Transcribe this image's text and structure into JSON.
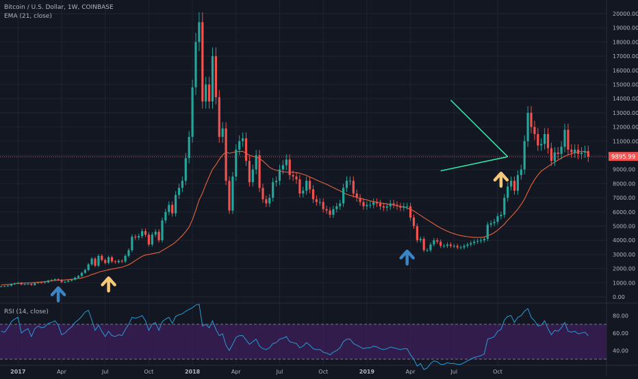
{
  "header": {
    "symbol_line": "Bitcoin / U.S. Dollar, 1W, COINBASE",
    "ema_label": "EMA (21, close)",
    "rsi_label": "RSI (14, close)"
  },
  "price_axis": {
    "ticks": [
      "20000.00",
      "19000.00",
      "18000.00",
      "17000.00",
      "16000.00",
      "15000.00",
      "14000.00",
      "13000.00",
      "12000.00",
      "11000.00",
      "10000.00",
      "9000.00",
      "8000.00",
      "7000.00",
      "6000.00",
      "5000.00",
      "4000.00",
      "3000.00",
      "2000.00",
      "1000.00",
      "0.00"
    ],
    "current_price": "9895.99"
  },
  "rsi_axis": {
    "ticks": [
      "80.00",
      "60.00",
      "40.00"
    ]
  },
  "time_axis": {
    "ticks": [
      "2017",
      "Apr",
      "Jul",
      "Oct",
      "2018",
      "Apr",
      "Jul",
      "Oct",
      "2019",
      "Apr",
      "Jul",
      "Oct"
    ]
  },
  "colors": {
    "background": "#131722",
    "up": "#26a69a",
    "down": "#ef5350",
    "ema": "#e8643a",
    "rsi": "#2a9bd6",
    "rsi_band": "#3c1f5b",
    "triangle": "#2ee6a6",
    "price_line": "#ef5350",
    "arrow_blue": "#3b85c5",
    "arrow_yellow": "#f5c978"
  },
  "chart_data": {
    "type": "candlestick",
    "title": "Bitcoin / U.S. Dollar, 1W, COINBASE",
    "y_range": [
      0,
      20000
    ],
    "current_price": 9895.99,
    "candles_start": "2016-11-28",
    "interval": "1W",
    "close": [
      750,
      760,
      790,
      900,
      960,
      1000,
      880,
      900,
      920,
      840,
      980,
      1010,
      1000,
      1030,
      1150,
      1190,
      1250,
      1200,
      1040,
      1070,
      1150,
      1220,
      1360,
      1480,
      1700,
      1900,
      2300,
      2700,
      2200,
      2900,
      2600,
      2400,
      2800,
      2500,
      2450,
      2550,
      2500,
      2900,
      3300,
      4250,
      4200,
      4300,
      4650,
      4400,
      3700,
      4400,
      4600,
      4000,
      5400,
      6000,
      6500,
      5900,
      7200,
      7700,
      8200,
      9800,
      11300,
      14800,
      18000,
      19400,
      13800,
      15000,
      13800,
      17000,
      14100,
      11300,
      11900,
      8200,
      6100,
      8500,
      10400,
      11000,
      11200,
      9600,
      8100,
      9000,
      10000,
      7700,
      6900,
      6600,
      7000,
      8100,
      8200,
      9000,
      9300,
      9700,
      8600,
      8500,
      8300,
      7300,
      7500,
      8200,
      7600,
      6900,
      6700,
      6700,
      6200,
      6100,
      5800,
      6200,
      6400,
      6600,
      7700,
      8200,
      8200,
      7300,
      7000,
      6700,
      6400,
      6500,
      6500,
      6700,
      6600,
      6400,
      6300,
      6400,
      6600,
      6500,
      6400,
      6300,
      6400,
      6400,
      5600,
      5000,
      4000,
      4100,
      3300,
      3300,
      3700,
      4000,
      3900,
      3600,
      3600,
      3700,
      3600,
      3600,
      3500,
      3500,
      3600,
      3700,
      3800,
      3900,
      3950,
      4000,
      4100,
      5100,
      5200,
      5300,
      5700,
      5800,
      7000,
      7800,
      8200,
      7500,
      8600,
      9000,
      11000,
      13000,
      12000,
      11500,
      10700,
      10800,
      11500,
      10500,
      9600,
      10200,
      10100,
      10600,
      11800,
      10400,
      10200,
      10400,
      10100,
      10200,
      10300,
      9900
    ],
    "ema_21": [
      850,
      860,
      880,
      900,
      920,
      950,
      960,
      980,
      990,
      1000,
      1020,
      1040,
      1060,
      1080,
      1100,
      1130,
      1160,
      1180,
      1190,
      1200,
      1220,
      1240,
      1270,
      1300,
      1340,
      1400,
      1480,
      1580,
      1650,
      1740,
      1810,
      1860,
      1920,
      1970,
      2010,
      2060,
      2100,
      2180,
      2270,
      2410,
      2570,
      2720,
      2870,
      2960,
      3000,
      3050,
      3100,
      3130,
      3270,
      3410,
      3560,
      3700,
      3880,
      4100,
      4340,
      4610,
      4940,
      5450,
      6120,
      6850,
      7330,
      7950,
      8500,
      9020,
      9330,
      9710,
      10020,
      10240,
      10140,
      10200,
      10250,
      10270,
      10280,
      10130,
      10010,
      9930,
      9890,
      9780,
      9600,
      9380,
      9150,
      9020,
      8940,
      8890,
      8840,
      8810,
      8800,
      8800,
      8780,
      8730,
      8650,
      8580,
      8470,
      8370,
      8250,
      8150,
      8050,
      7950,
      7830,
      7720,
      7600,
      7500,
      7360,
      7250,
      7170,
      7100,
      7030,
      6960,
      6900,
      6850,
      6780,
      6730,
      6690,
      6640,
      6600,
      6560,
      6520,
      6490,
      6450,
      6400,
      6340,
      6280,
      6190,
      6070,
      5910,
      5760,
      5600,
      5450,
      5300,
      5150,
      5000,
      4870,
      4750,
      4640,
      4540,
      4460,
      4390,
      4330,
      4290,
      4250,
      4220,
      4200,
      4200,
      4210,
      4230,
      4320,
      4410,
      4540,
      4710,
      4920,
      5140,
      5420,
      5660,
      5920,
      6200,
      6530,
      6910,
      7400,
      7880,
      8280,
      8610,
      8880,
      9050,
      9210,
      9380,
      9520,
      9660,
      9800,
      9940,
      10030,
      10110,
      10180,
      10240,
      10290,
      10250,
      10200
    ],
    "rsi_14": [
      62,
      61,
      66,
      73,
      76,
      78,
      60,
      63,
      65,
      56,
      65,
      68,
      66,
      67,
      71,
      72,
      74,
      69,
      58,
      60,
      64,
      67,
      72,
      75,
      79,
      84,
      86,
      75,
      63,
      69,
      62,
      56,
      62,
      57,
      56,
      58,
      57,
      64,
      70,
      78,
      77,
      78,
      80,
      74,
      63,
      70,
      72,
      63,
      73,
      76,
      78,
      71,
      79,
      81,
      82,
      85,
      87,
      89,
      92,
      93,
      68,
      70,
      66,
      74,
      64,
      57,
      59,
      46,
      40,
      47,
      55,
      57,
      57,
      52,
      47,
      50,
      53,
      45,
      42,
      41,
      43,
      48,
      49,
      53,
      54,
      56,
      50,
      49,
      48,
      43,
      45,
      49,
      46,
      42,
      41,
      41,
      38,
      37,
      35,
      38,
      40,
      43,
      50,
      53,
      53,
      48,
      46,
      44,
      42,
      43,
      43,
      45,
      44,
      42,
      41,
      42,
      44,
      43,
      42,
      41,
      42,
      42,
      35,
      30,
      22,
      25,
      18,
      20,
      25,
      28,
      27,
      24,
      24,
      26,
      25,
      25,
      24,
      24,
      26,
      28,
      30,
      32,
      33,
      34,
      36,
      53,
      54,
      56,
      62,
      64,
      75,
      79,
      80,
      72,
      78,
      80,
      85,
      88,
      78,
      74,
      68,
      69,
      74,
      65,
      58,
      63,
      62,
      66,
      72,
      62,
      61,
      62,
      59,
      60,
      61,
      57
    ],
    "overlays": {
      "triangle_top_start": [
        "2019-06-24",
        13900
      ],
      "triangle_bottom_start": [
        "2019-06-03",
        8900
      ],
      "triangle_apex": [
        "2019-10-21",
        9900
      ]
    },
    "annotations": [
      {
        "type": "arrow",
        "color": "blue",
        "date": "2017-03-27",
        "price": 300
      },
      {
        "type": "arrow",
        "color": "yellow",
        "date": "2017-07-10",
        "price": 1000
      },
      {
        "type": "arrow",
        "color": "blue",
        "date": "2019-03-25",
        "price": 2900
      },
      {
        "type": "arrow",
        "color": "yellow",
        "date": "2019-10-07",
        "price": 8400
      }
    ],
    "rsi_levels": [
      70,
      30
    ],
    "xlabel": "",
    "ylabel": ""
  }
}
